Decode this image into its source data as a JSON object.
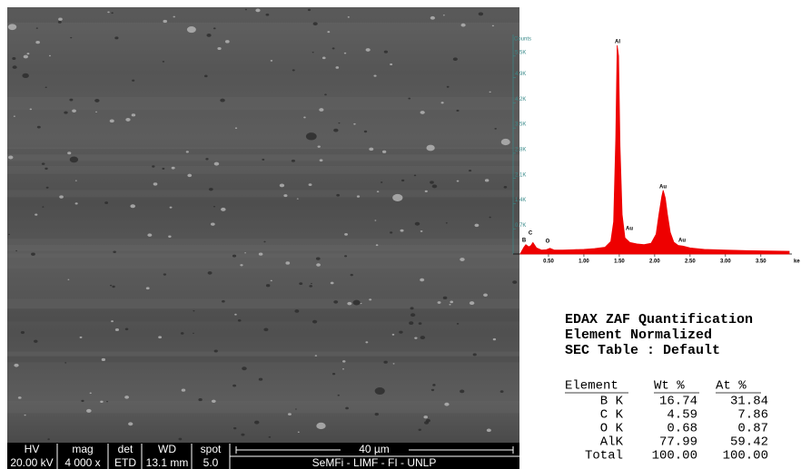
{
  "sem_image": {
    "info_bar": {
      "headers": [
        "HV",
        "mag",
        "det",
        "WD",
        "spot"
      ],
      "values": [
        "20.00 kV",
        "4 000 x",
        "ETD",
        "13.1 mm",
        "5.0"
      ],
      "scale_bar": "40 µm",
      "lab": "SeMFi - LIMF - FI - UNLP"
    }
  },
  "chart_data": {
    "type": "area",
    "y_label": "Counts",
    "x_label": "ke",
    "color": "#ee0000",
    "x": [
      0.1,
      0.15,
      0.18,
      0.22,
      0.25,
      0.28,
      0.33,
      0.4,
      0.47,
      0.52,
      0.58,
      0.7,
      0.85,
      1.0,
      1.15,
      1.3,
      1.38,
      1.42,
      1.45,
      1.47,
      1.49,
      1.51,
      1.54,
      1.58,
      1.65,
      1.75,
      1.85,
      1.95,
      2.02,
      2.06,
      2.1,
      2.12,
      2.15,
      2.18,
      2.22,
      2.27,
      2.33,
      2.4,
      2.5,
      2.7,
      3.0,
      3.3,
      3.6,
      3.9
    ],
    "values": [
      0,
      180,
      260,
      200,
      230,
      320,
      170,
      110,
      120,
      160,
      110,
      110,
      120,
      130,
      150,
      190,
      350,
      900,
      3200,
      5800,
      5500,
      3000,
      1100,
      450,
      320,
      280,
      260,
      300,
      550,
      1100,
      1600,
      1770,
      1550,
      1100,
      600,
      330,
      240,
      220,
      170,
      130,
      110,
      95,
      85,
      75
    ],
    "xlim": [
      0,
      3.9
    ],
    "ylim": [
      0,
      6100
    ],
    "xticks": [
      {
        "value": 0.5,
        "label": "0.50"
      },
      {
        "value": 1.0,
        "label": "1.00"
      },
      {
        "value": 1.5,
        "label": "1.50"
      },
      {
        "value": 2.0,
        "label": "2.00"
      },
      {
        "value": 2.5,
        "label": "2.50"
      },
      {
        "value": 3.0,
        "label": "3.00"
      },
      {
        "value": 3.5,
        "label": "3.50"
      }
    ],
    "yticks": [
      {
        "value": 700,
        "label": "0.7K"
      },
      {
        "value": 1400,
        "label": "1.4K"
      },
      {
        "value": 2100,
        "label": "2.1K"
      },
      {
        "value": 2800,
        "label": "2.8K"
      },
      {
        "value": 3500,
        "label": "3.5K"
      },
      {
        "value": 4200,
        "label": "4.2K"
      },
      {
        "value": 4900,
        "label": "4.9K"
      },
      {
        "value": 5500,
        "label": "5.5K"
      }
    ],
    "annotations": [
      "B",
      "C",
      "O",
      "Al",
      "Au",
      "Au",
      "Au"
    ]
  },
  "table": {
    "title_lines": [
      "EDAX ZAF Quantification",
      "Element Normalized",
      "SEC Table : Default"
    ],
    "header": [
      "Element",
      "Wt %",
      "At %"
    ],
    "rows": [
      [
        "B K",
        "16.74",
        "31.84"
      ],
      [
        "C K",
        "4.59",
        "7.86"
      ],
      [
        "O K",
        "0.68",
        "0.87"
      ],
      [
        "AlK",
        "77.99",
        "59.42"
      ],
      [
        "Total",
        "100.00",
        "100.00"
      ]
    ]
  }
}
